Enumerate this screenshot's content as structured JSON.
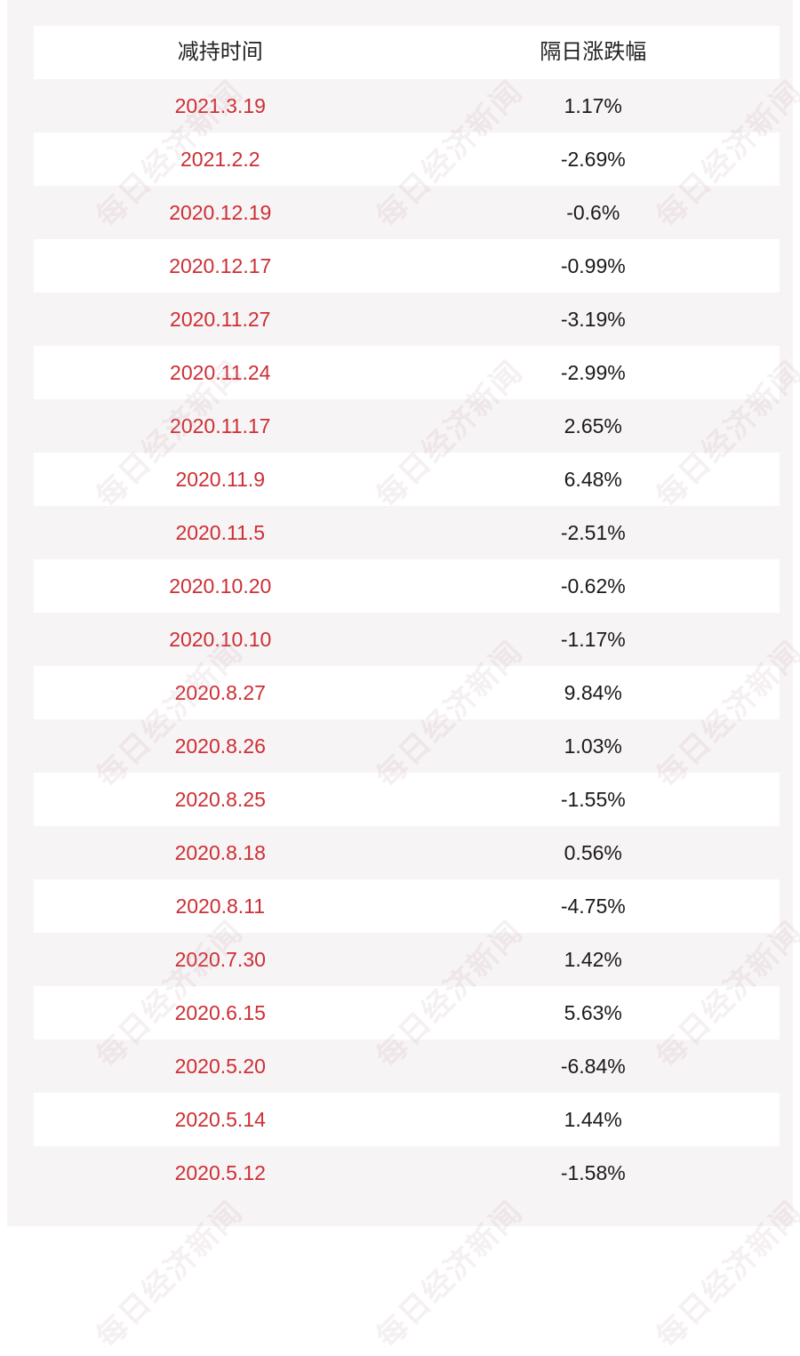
{
  "table": {
    "headers": {
      "date": "减持时间",
      "change": "隔日涨跌幅"
    },
    "rows": [
      {
        "date": "2021.3.19",
        "change": "1.17%"
      },
      {
        "date": "2021.2.2",
        "change": "-2.69%"
      },
      {
        "date": "2020.12.19",
        "change": "-0.6%"
      },
      {
        "date": "2020.12.17",
        "change": "-0.99%"
      },
      {
        "date": "2020.11.27",
        "change": "-3.19%"
      },
      {
        "date": "2020.11.24",
        "change": "-2.99%"
      },
      {
        "date": "2020.11.17",
        "change": "2.65%"
      },
      {
        "date": "2020.11.9",
        "change": "6.48%"
      },
      {
        "date": "2020.11.5",
        "change": "-2.51%"
      },
      {
        "date": "2020.10.20",
        "change": "-0.62%"
      },
      {
        "date": "2020.10.10",
        "change": "-1.17%"
      },
      {
        "date": "2020.8.27",
        "change": "9.84%"
      },
      {
        "date": "2020.8.26",
        "change": "1.03%"
      },
      {
        "date": "2020.8.25",
        "change": "-1.55%"
      },
      {
        "date": "2020.8.18",
        "change": "0.56%"
      },
      {
        "date": "2020.8.11",
        "change": "-4.75%"
      },
      {
        "date": "2020.7.30",
        "change": "1.42%"
      },
      {
        "date": "2020.6.15",
        "change": "5.63%"
      },
      {
        "date": "2020.5.20",
        "change": "-6.84%"
      },
      {
        "date": "2020.5.14",
        "change": "1.44%"
      },
      {
        "date": "2020.5.12",
        "change": "-1.58%"
      }
    ]
  },
  "watermark": "每日经济新闻",
  "colors": {
    "date_text": "#cc2f35",
    "value_text": "#1a1a1a",
    "background": "#f7f4f5"
  }
}
